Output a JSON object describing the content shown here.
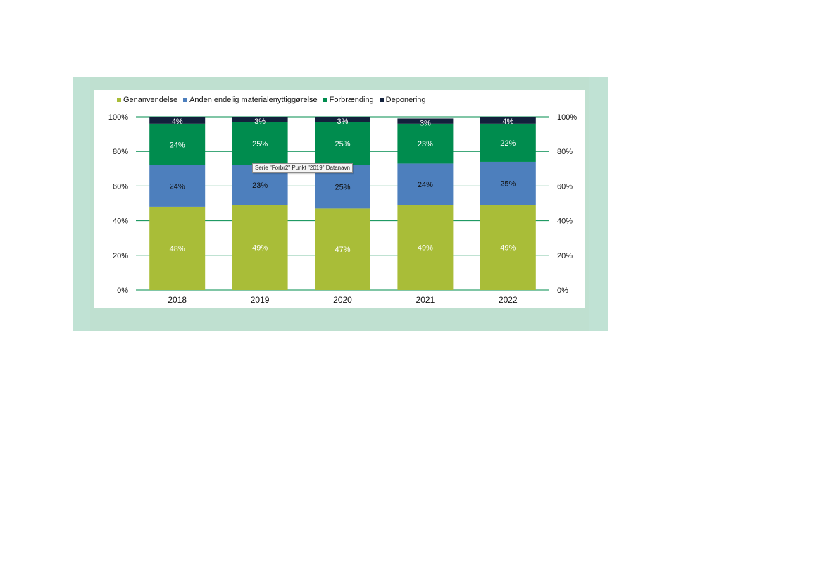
{
  "chart_data": {
    "type": "bar",
    "stacked": true,
    "categories": [
      "2018",
      "2019",
      "2020",
      "2021",
      "2022"
    ],
    "series": [
      {
        "name": "Genanvendelse",
        "color": "#a9bd38",
        "label_color": "#ffffff",
        "values": [
          48,
          49,
          47,
          49,
          49
        ]
      },
      {
        "name": "Anden endelig materialenyttiggørelse",
        "color": "#4d7fbd",
        "label_color": "#111111",
        "values": [
          24,
          23,
          25,
          24,
          25
        ]
      },
      {
        "name": "Forbrænding",
        "color": "#008c4e",
        "label_color": "#ffffff",
        "values": [
          24,
          25,
          25,
          23,
          22
        ]
      },
      {
        "name": "Deponering",
        "color": "#13213c",
        "label_color": "#ffffff",
        "values": [
          4,
          3,
          3,
          3,
          4
        ]
      }
    ],
    "value_labels": [
      [
        "48%",
        "49%",
        "47%",
        "49%",
        "49%"
      ],
      [
        "24%",
        "23%",
        "25%",
        "24%",
        "25%"
      ],
      [
        "24%",
        "25%",
        "25%",
        "23%",
        "22%"
      ],
      [
        "4%",
        "3%",
        "3%",
        "3%",
        "4%"
      ]
    ],
    "y_ticks": [
      "0%",
      "20%",
      "40%",
      "60%",
      "80%",
      "100%"
    ],
    "ylim": [
      0,
      100
    ],
    "secondary_y_axis": true,
    "grid": true,
    "grid_color": "#008c4e",
    "legend_position": "top-left",
    "title": "",
    "xlabel": "",
    "ylabel": ""
  },
  "tooltip": {
    "text": "Serie \"Forbr2\" Punkt \"2019\" Datanavn"
  },
  "colors": {
    "frame": "#c0e2d4",
    "plot_background": "#ffffff"
  }
}
